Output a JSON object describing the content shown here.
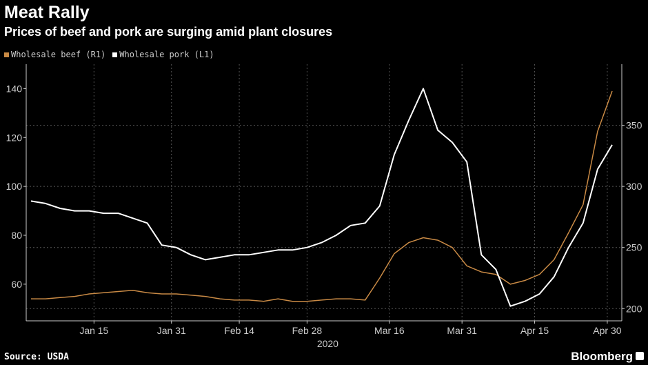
{
  "header": {
    "title": "Meat Rally",
    "subtitle": "Prices of beef and pork are surging amid plant closures"
  },
  "footer": {
    "source": "Source: USDA",
    "brand": "Bloomberg"
  },
  "colors": {
    "beef": "#c98a45",
    "pork": "#ffffff",
    "grid": "#555555",
    "axis": "#cccccc"
  },
  "chart_data": {
    "type": "line",
    "x_axis": {
      "ticks": [
        "Jan 15",
        "Jan 31",
        "Feb 14",
        "Feb 28",
        "Mar 16",
        "Mar 31",
        "Apr 15",
        "Apr 30"
      ],
      "year_label": "2020"
    },
    "left_axis": {
      "ylim": [
        45,
        150
      ],
      "ticks": [
        60,
        80,
        100,
        120,
        140
      ]
    },
    "right_axis": {
      "ylim": [
        190,
        400
      ],
      "ticks": [
        200,
        250,
        300,
        350
      ]
    },
    "series": [
      {
        "name": "Wholesale beef (R1)",
        "axis": "right",
        "x": [
          "2020-01-02",
          "2020-01-05",
          "2020-01-08",
          "2020-01-11",
          "2020-01-14",
          "2020-01-17",
          "2020-01-20",
          "2020-01-23",
          "2020-01-26",
          "2020-01-29",
          "2020-02-01",
          "2020-02-04",
          "2020-02-07",
          "2020-02-10",
          "2020-02-13",
          "2020-02-16",
          "2020-02-19",
          "2020-02-22",
          "2020-02-25",
          "2020-02-28",
          "2020-03-02",
          "2020-03-05",
          "2020-03-08",
          "2020-03-11",
          "2020-03-14",
          "2020-03-17",
          "2020-03-20",
          "2020-03-23",
          "2020-03-26",
          "2020-03-29",
          "2020-04-01",
          "2020-04-04",
          "2020-04-07",
          "2020-04-10",
          "2020-04-13",
          "2020-04-16",
          "2020-04-19",
          "2020-04-22",
          "2020-04-25",
          "2020-04-28",
          "2020-05-01"
        ],
        "values": [
          208,
          208,
          209,
          210,
          212,
          213,
          214,
          215,
          213,
          212,
          212,
          211,
          210,
          208,
          207,
          207,
          206,
          208,
          206,
          206,
          207,
          208,
          208,
          207,
          225,
          245,
          254,
          258,
          256,
          250,
          235,
          230,
          228,
          220,
          223,
          228,
          240,
          262,
          285,
          345,
          378
        ]
      },
      {
        "name": "Wholesale pork (L1)",
        "axis": "left",
        "x": [
          "2020-01-02",
          "2020-01-05",
          "2020-01-08",
          "2020-01-11",
          "2020-01-14",
          "2020-01-17",
          "2020-01-20",
          "2020-01-23",
          "2020-01-26",
          "2020-01-29",
          "2020-02-01",
          "2020-02-04",
          "2020-02-07",
          "2020-02-10",
          "2020-02-13",
          "2020-02-16",
          "2020-02-19",
          "2020-02-22",
          "2020-02-25",
          "2020-02-28",
          "2020-03-02",
          "2020-03-05",
          "2020-03-08",
          "2020-03-11",
          "2020-03-14",
          "2020-03-17",
          "2020-03-20",
          "2020-03-23",
          "2020-03-26",
          "2020-03-29",
          "2020-04-01",
          "2020-04-04",
          "2020-04-07",
          "2020-04-10",
          "2020-04-13",
          "2020-04-16",
          "2020-04-19",
          "2020-04-22",
          "2020-04-25",
          "2020-04-28",
          "2020-05-01"
        ],
        "values": [
          94,
          93,
          91,
          90,
          90,
          89,
          89,
          87,
          85,
          76,
          75,
          72,
          70,
          71,
          72,
          72,
          73,
          74,
          74,
          75,
          77,
          80,
          84,
          85,
          92,
          113,
          127,
          140,
          123,
          118,
          110,
          72,
          66,
          51,
          53,
          56,
          63,
          75,
          85,
          107,
          117
        ]
      }
    ]
  }
}
